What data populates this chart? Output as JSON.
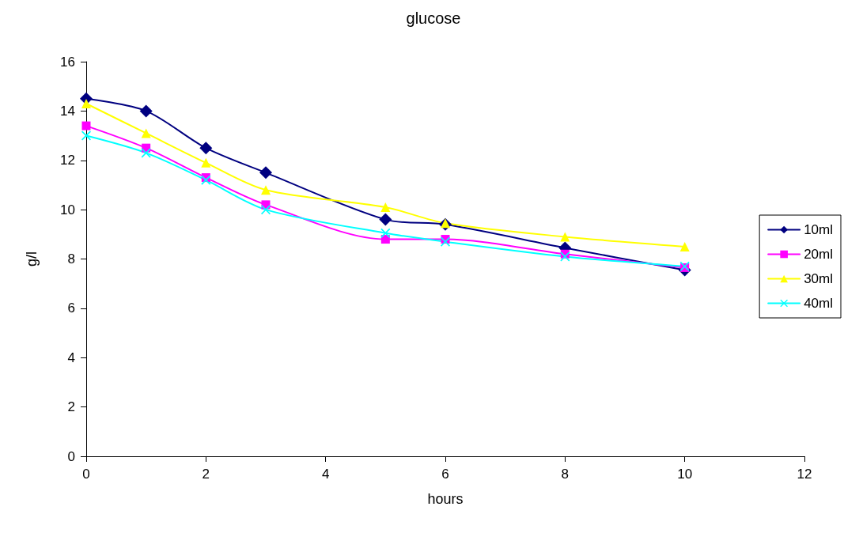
{
  "chart_data": {
    "type": "line",
    "title": "glucose",
    "xlabel": "hours",
    "ylabel": "g/l",
    "x": [
      0,
      1,
      2,
      3,
      5,
      6,
      8,
      10
    ],
    "series": [
      {
        "name": "10ml",
        "color": "#000080",
        "marker": "diamond",
        "values": [
          14.5,
          14.0,
          12.5,
          11.5,
          9.6,
          9.4,
          8.45,
          7.55
        ]
      },
      {
        "name": "20ml",
        "color": "#ff00ff",
        "marker": "square",
        "values": [
          13.4,
          12.5,
          11.3,
          10.2,
          8.8,
          8.8,
          8.2,
          7.65
        ]
      },
      {
        "name": "30ml",
        "color": "#ffff00",
        "marker": "triangle",
        "values": [
          14.3,
          13.1,
          11.9,
          10.8,
          10.1,
          9.45,
          8.9,
          8.5
        ]
      },
      {
        "name": "40ml",
        "color": "#00ffff",
        "marker": "cross",
        "values": [
          13.0,
          12.3,
          11.2,
          10.0,
          9.05,
          8.7,
          8.1,
          7.7
        ]
      }
    ],
    "xlim": [
      0,
      12
    ],
    "xticks": [
      0,
      2,
      4,
      6,
      8,
      10,
      12
    ],
    "ylim": [
      0,
      16
    ],
    "yticks": [
      0,
      2,
      4,
      6,
      8,
      10,
      12,
      14,
      16
    ],
    "grid": false,
    "legend": "right",
    "line_style": "solid"
  }
}
